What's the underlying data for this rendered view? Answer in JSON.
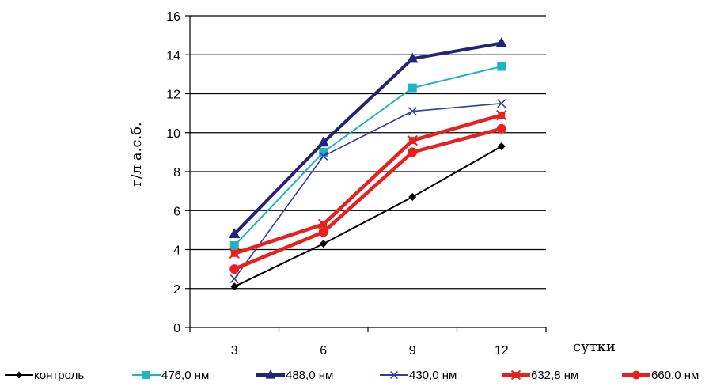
{
  "chart_data": {
    "type": "line",
    "x": [
      3,
      6,
      9,
      12
    ],
    "xlabel": "сутки",
    "ylabel": "г/л а.с.б.",
    "ylim": [
      0,
      16
    ],
    "yticks": [
      0,
      2,
      4,
      6,
      8,
      10,
      12,
      14,
      16
    ],
    "grid": "horizontal",
    "legend_position": "bottom",
    "series": [
      {
        "name": "контроль",
        "values": [
          2.1,
          4.3,
          6.7,
          9.3
        ],
        "color": "#000000",
        "marker": "diamond"
      },
      {
        "name": "476,0 нм",
        "values": [
          4.2,
          9.0,
          12.3,
          13.4
        ],
        "color": "#1fb3c8",
        "marker": "square"
      },
      {
        "name": "488,0 нм",
        "values": [
          4.8,
          9.5,
          13.8,
          14.6
        ],
        "color": "#23237a",
        "marker": "triangle"
      },
      {
        "name": "430,0 нм",
        "values": [
          2.5,
          8.8,
          11.1,
          11.5
        ],
        "color": "#2d3e9e",
        "marker": "x"
      },
      {
        "name": "632,8 нм",
        "values": [
          3.8,
          5.3,
          9.6,
          10.9
        ],
        "color": "#e8201e",
        "marker": "asterisk"
      },
      {
        "name": "660,0 нм",
        "values": [
          3.0,
          4.9,
          9.0,
          10.2
        ],
        "color": "#e8201e",
        "marker": "circle"
      }
    ]
  }
}
